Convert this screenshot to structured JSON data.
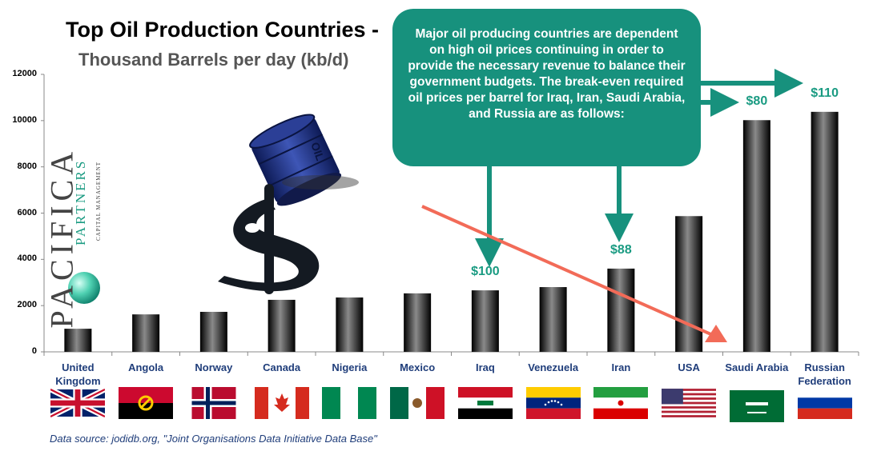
{
  "title": "Top Oil Production Countries -",
  "subtitle": "Thousand Barrels per day (kb/d)",
  "callout": "Major oil producing countries are dependent on high oil prices continuing in order to provide the necessary revenue to balance their government budgets.  The break-even required oil prices per barrel for Iraq, Iran, Saudi Arabia, and Russia are as follows:",
  "source": "Data source:  jodidb.org, \"Joint Organisations Data Initiative Data Base\"",
  "logo_text": {
    "main": "PACIFICA",
    "second": "PARTNERS",
    "third": "CAPITAL MANAGEMENT"
  },
  "barrel_label": "OIL",
  "colors": {
    "bar_dark": "#000000",
    "bar_light": "#8a8a8a",
    "callout": "#17917d",
    "price": "#1a9b82",
    "category_text": "#1f3d7a",
    "trend_arrow": "#f26b58"
  },
  "flags": [
    "uk-flag",
    "angola-flag",
    "norway-flag",
    "canada-flag",
    "nigeria-flag",
    "mexico-flag",
    "iraq-flag",
    "venezuela-flag",
    "iran-flag",
    "usa-flag",
    "saudi-arabia-flag",
    "russia-flag"
  ],
  "chart_data": {
    "type": "bar",
    "categories": [
      "United Kingdom",
      "Angola",
      "Norway",
      "Canada",
      "Nigeria",
      "Mexico",
      "Iraq",
      "Venezuela",
      "Iran",
      "USA",
      "Saudi Arabia",
      "Russian Federation"
    ],
    "category_lines": [
      [
        "United",
        "Kingdom"
      ],
      [
        "Angola"
      ],
      [
        "Norway"
      ],
      [
        "Canada"
      ],
      [
        "Nigeria"
      ],
      [
        "Mexico"
      ],
      [
        "Iraq"
      ],
      [
        "Venezuela"
      ],
      [
        "Iran"
      ],
      [
        "USA"
      ],
      [
        "Saudi Arabia"
      ],
      [
        "Russian",
        "Federation"
      ]
    ],
    "values": [
      1000,
      1620,
      1730,
      2250,
      2350,
      2530,
      2660,
      2800,
      3600,
      5870,
      10020,
      10380
    ],
    "yticks": [
      "0",
      "2000",
      "4000",
      "6000",
      "8000",
      "10000",
      "12000"
    ],
    "ylim": [
      0,
      12000
    ],
    "grid": false,
    "legend": "none",
    "annotations": [
      {
        "category": "Iraq",
        "label": "$100"
      },
      {
        "category": "Iran",
        "label": "$88"
      },
      {
        "category": "Saudi Arabia",
        "label": "$80"
      },
      {
        "category": "Russian Federation",
        "label": "$110"
      }
    ]
  }
}
